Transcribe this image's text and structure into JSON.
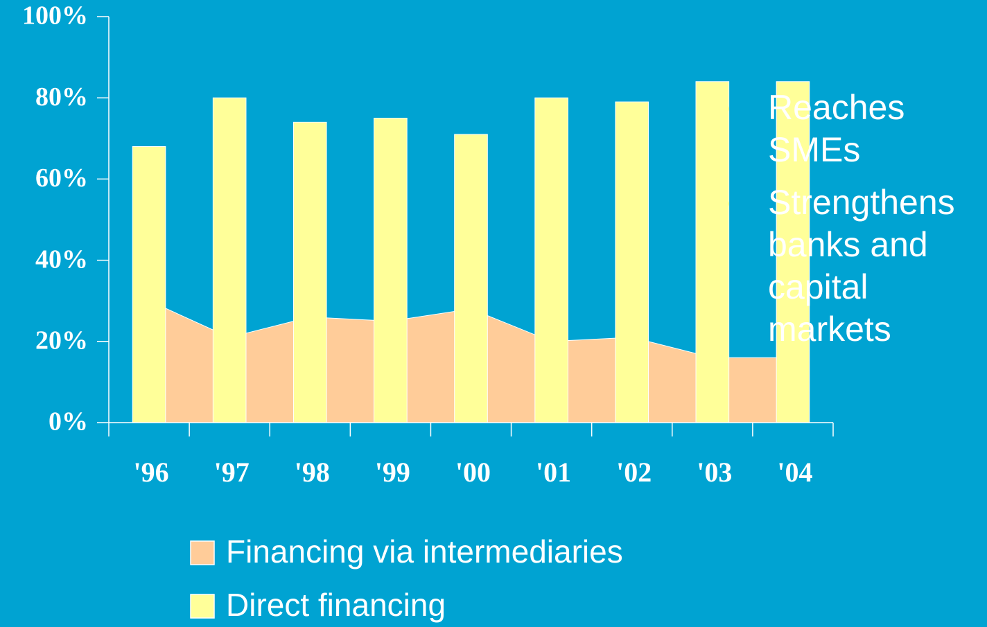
{
  "chart_data": {
    "type": "bar",
    "categories": [
      "'96",
      "'97",
      "'98",
      "'99",
      "'00",
      "'01",
      "'02",
      "'03",
      "'04"
    ],
    "series": [
      {
        "name": "Financing via intermediaries",
        "color": "#ffcc99",
        "kind": "area",
        "values": [
          30,
          21,
          26,
          25,
          28,
          20,
          21,
          16,
          16
        ]
      },
      {
        "name": "Direct financing",
        "color": "#ffff99",
        "kind": "bar",
        "values": [
          68,
          80,
          74,
          75,
          71,
          80,
          79,
          84,
          84
        ]
      }
    ],
    "ylim": [
      0,
      100
    ],
    "yticks": [
      {
        "value": 0,
        "label": "0%"
      },
      {
        "value": 20,
        "label": "20%"
      },
      {
        "value": 40,
        "label": "40%"
      },
      {
        "value": 60,
        "label": "60%"
      },
      {
        "value": 80,
        "label": "80%"
      },
      {
        "value": 100,
        "label": "100%"
      }
    ],
    "annotations": [
      "Reaches SMEs",
      "Strengthens banks and capital markets"
    ],
    "legend": "bottom"
  }
}
